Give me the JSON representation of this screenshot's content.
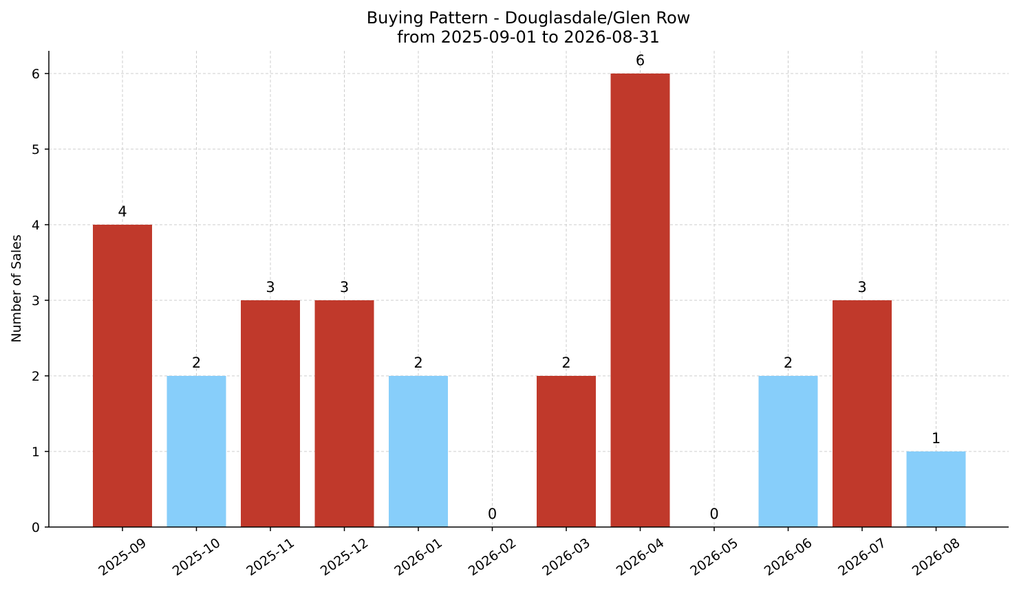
{
  "chart_data": {
    "type": "bar",
    "title_line1": "Buying Pattern - Douglasdale/Glen Row",
    "title_line2": "from 2025-09-01 to 2026-08-31",
    "xlabel": "",
    "ylabel": "Number of Sales",
    "categories": [
      "2025-09",
      "2025-10",
      "2025-11",
      "2025-12",
      "2026-01",
      "2026-02",
      "2026-03",
      "2026-04",
      "2026-05",
      "2026-06",
      "2026-07",
      "2026-08"
    ],
    "values": [
      4,
      2,
      3,
      3,
      2,
      0,
      2,
      6,
      0,
      2,
      3,
      1
    ],
    "bar_colors": [
      "#c0392b",
      "#87cefa",
      "#c0392b",
      "#c0392b",
      "#87cefa",
      "#87cefa",
      "#c0392b",
      "#c0392b",
      "#87cefa",
      "#87cefa",
      "#c0392b",
      "#87cefa"
    ],
    "ylim": [
      0,
      6.3
    ],
    "yticks": [
      0,
      1,
      2,
      3,
      4,
      5,
      6
    ],
    "grid": true,
    "legend": "none"
  }
}
